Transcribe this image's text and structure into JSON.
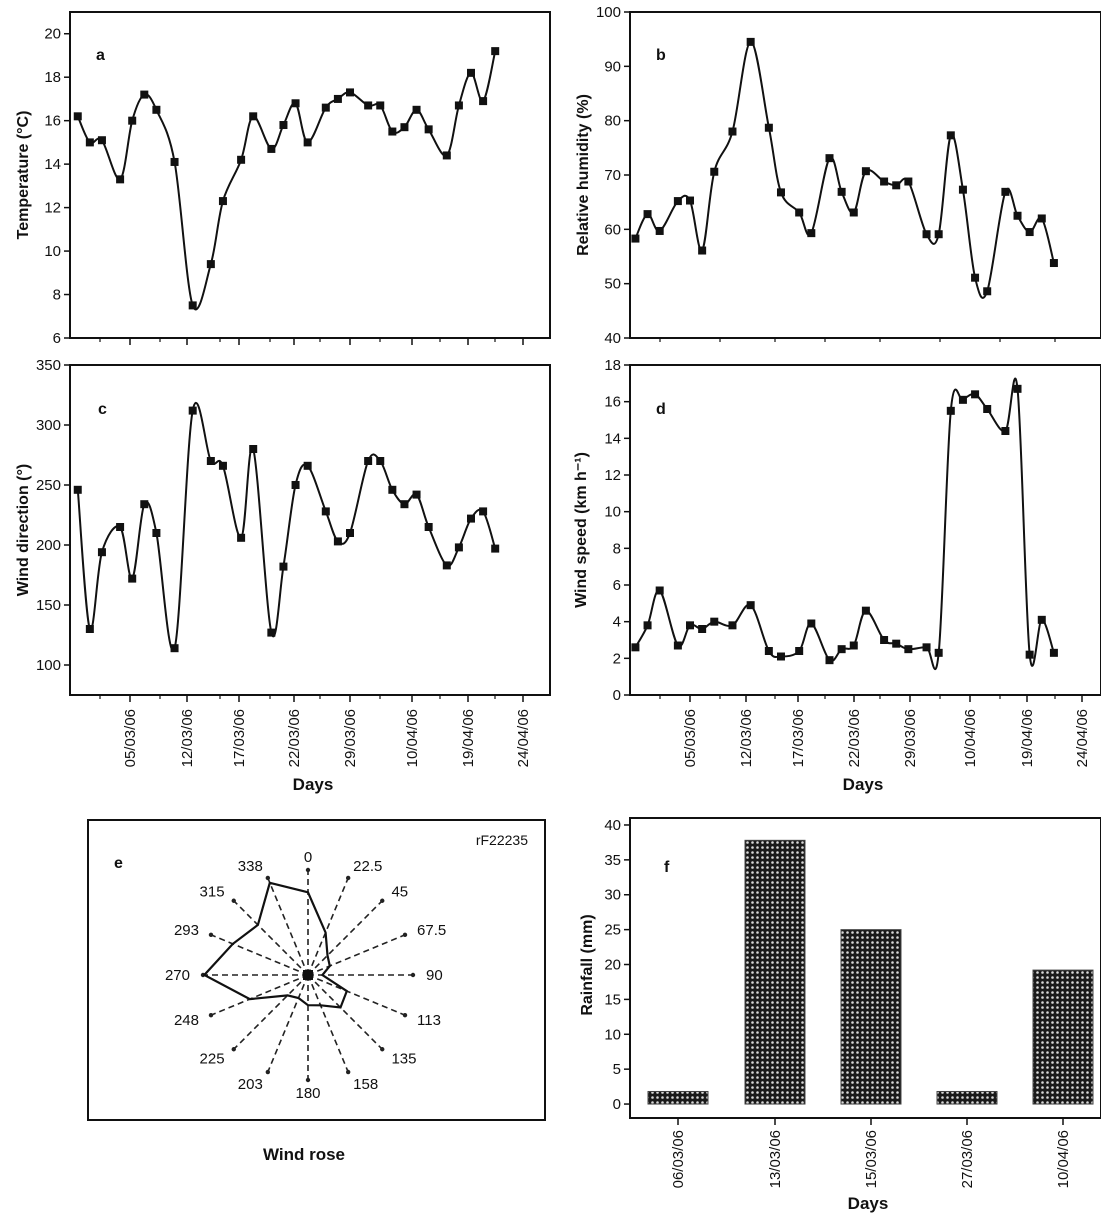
{
  "chart_data": [
    {
      "id": "a",
      "type": "line",
      "panel_label": "a",
      "ylabel": "Temperature (°C)",
      "xlabel": "",
      "ylim": [
        6,
        21
      ],
      "yticks": [
        6,
        8,
        10,
        12,
        14,
        16,
        18,
        20
      ],
      "xlim": [
        0,
        54
      ],
      "xtick_labels": [
        "05/03/06",
        "12/03/06",
        "17/03/06",
        "22/03/06",
        "29/03/06",
        "10/04/06",
        "19/04/06",
        "24/04/06"
      ],
      "xtick_pos": [
        6,
        13,
        18,
        23,
        30,
        42,
        51,
        56
      ],
      "series": [
        {
          "values": [
            [
              2.5,
              16.2
            ],
            [
              3.5,
              15.0
            ],
            [
              4.5,
              15.1
            ],
            [
              6,
              13.3
            ],
            [
              7,
              16.0
            ],
            [
              8,
              17.2
            ],
            [
              9,
              16.5
            ],
            [
              10.5,
              14.1
            ],
            [
              12,
              7.5
            ],
            [
              13.5,
              9.4
            ],
            [
              14.5,
              12.3
            ],
            [
              16,
              14.2
            ],
            [
              17,
              16.2
            ],
            [
              18.5,
              14.7
            ],
            [
              19.5,
              15.8
            ],
            [
              20.5,
              16.8
            ],
            [
              21.5,
              15.0
            ],
            [
              23,
              16.6
            ],
            [
              24,
              17.0
            ],
            [
              25,
              17.3
            ],
            [
              26.5,
              16.7
            ],
            [
              27.5,
              16.7
            ],
            [
              28.5,
              15.5
            ],
            [
              29.5,
              15.7
            ],
            [
              30.5,
              16.5
            ],
            [
              31.5,
              15.6
            ],
            [
              33,
              14.4
            ],
            [
              34,
              16.7
            ],
            [
              35,
              18.2
            ],
            [
              36,
              16.9
            ],
            [
              37,
              19.2
            ]
          ]
        }
      ]
    },
    {
      "id": "b",
      "type": "line",
      "panel_label": "b",
      "ylabel": "Relative humidity (%)",
      "xlabel": "",
      "ylim": [
        40,
        100
      ],
      "yticks": [
        40,
        50,
        60,
        70,
        80,
        90,
        100
      ],
      "xlim": [
        0,
        54
      ],
      "xtick_labels": [],
      "xtick_pos": [],
      "series": [
        {
          "values": [
            [
              2.5,
              58.3
            ],
            [
              3.5,
              62.8
            ],
            [
              4.5,
              59.7
            ],
            [
              6,
              65.2
            ],
            [
              7,
              65.3
            ],
            [
              8,
              56.1
            ],
            [
              9,
              70.6
            ],
            [
              10.5,
              78.0
            ],
            [
              12,
              94.5
            ],
            [
              13.5,
              78.7
            ],
            [
              14.5,
              66.8
            ],
            [
              16,
              63.1
            ],
            [
              17,
              59.3
            ],
            [
              18.5,
              73.1
            ],
            [
              19.5,
              66.9
            ],
            [
              20.5,
              63.1
            ],
            [
              21.5,
              70.7
            ],
            [
              23,
              68.8
            ],
            [
              24,
              68.1
            ],
            [
              25,
              68.8
            ],
            [
              26.5,
              59.1
            ],
            [
              27.5,
              59.1
            ],
            [
              28.5,
              77.3
            ],
            [
              29.5,
              67.3
            ],
            [
              30.5,
              51.1
            ],
            [
              31.5,
              48.6
            ],
            [
              33,
              66.9
            ],
            [
              34,
              62.5
            ],
            [
              35,
              59.5
            ],
            [
              36,
              62.0
            ],
            [
              37,
              53.8
            ]
          ]
        }
      ]
    },
    {
      "id": "c",
      "type": "line",
      "panel_label": "c",
      "ylabel": "Wind direction (°)",
      "xlabel": "Days",
      "ylim": [
        75,
        350
      ],
      "yticks": [
        100,
        150,
        200,
        250,
        300,
        350
      ],
      "xlim": [
        0,
        54
      ],
      "xtick_labels": [
        "05/03/06",
        "12/03/06",
        "17/03/06",
        "22/03/06",
        "29/03/06",
        "10/04/06",
        "19/04/06",
        "24/04/06"
      ],
      "series": [
        {
          "values": [
            [
              2.5,
              246
            ],
            [
              3.5,
              130
            ],
            [
              4.5,
              194
            ],
            [
              6,
              215
            ],
            [
              7,
              172
            ],
            [
              8,
              234
            ],
            [
              9,
              210
            ],
            [
              10.5,
              114
            ],
            [
              12,
              312
            ],
            [
              13.5,
              270
            ],
            [
              14.5,
              266
            ],
            [
              16,
              206
            ],
            [
              17,
              280
            ],
            [
              18.5,
              127
            ],
            [
              19.5,
              182
            ],
            [
              20.5,
              250
            ],
            [
              21.5,
              266
            ],
            [
              23,
              228
            ],
            [
              24,
              203
            ],
            [
              25,
              210
            ],
            [
              26.5,
              270
            ],
            [
              27.5,
              270
            ],
            [
              28.5,
              246
            ],
            [
              29.5,
              234
            ],
            [
              30.5,
              242
            ],
            [
              31.5,
              215
            ],
            [
              33,
              183
            ],
            [
              34,
              198
            ],
            [
              35,
              222
            ],
            [
              36,
              228
            ],
            [
              37,
              197
            ]
          ]
        }
      ]
    },
    {
      "id": "d",
      "type": "line",
      "panel_label": "d",
      "ylabel": "Wind speed (km h⁻¹)",
      "xlabel": "Days",
      "ylim": [
        0,
        18
      ],
      "yticks": [
        0,
        2,
        4,
        6,
        8,
        10,
        12,
        14,
        16,
        18
      ],
      "xlim": [
        0,
        54
      ],
      "xtick_labels": [
        "05/03/06",
        "12/03/06",
        "17/03/06",
        "22/03/06",
        "29/03/06",
        "10/04/06",
        "19/04/06",
        "24/04/06"
      ],
      "series": [
        {
          "values": [
            [
              2.5,
              2.6
            ],
            [
              3.5,
              3.8
            ],
            [
              4.5,
              5.7
            ],
            [
              6,
              2.7
            ],
            [
              7,
              3.8
            ],
            [
              8,
              3.6
            ],
            [
              9,
              4.0
            ],
            [
              10.5,
              3.8
            ],
            [
              12,
              4.9
            ],
            [
              13.5,
              2.4
            ],
            [
              14.5,
              2.1
            ],
            [
              16,
              2.4
            ],
            [
              17,
              3.9
            ],
            [
              18.5,
              1.9
            ],
            [
              19.5,
              2.5
            ],
            [
              20.5,
              2.7
            ],
            [
              21.5,
              4.6
            ],
            [
              23,
              3.0
            ],
            [
              24,
              2.8
            ],
            [
              25,
              2.5
            ],
            [
              26.5,
              2.6
            ],
            [
              27.5,
              2.3
            ],
            [
              28.5,
              15.5
            ],
            [
              29.5,
              16.1
            ],
            [
              30.5,
              16.4
            ],
            [
              31.5,
              15.6
            ],
            [
              33,
              14.4
            ],
            [
              34,
              16.7
            ],
            [
              35,
              2.2
            ],
            [
              36,
              4.1
            ],
            [
              37,
              2.3
            ]
          ]
        }
      ]
    },
    {
      "id": "e",
      "type": "radar",
      "panel_label": "e",
      "title": "rF22235",
      "xlabel": "Wind rose",
      "directions": [
        "0",
        "22.5",
        "45",
        "67.5",
        "90",
        "113",
        "135",
        "158",
        "180",
        "203",
        "225",
        "248",
        "270",
        "293",
        "315",
        "338"
      ],
      "values": [
        6.3,
        3.5,
        2.1,
        1.8,
        1.1,
        3.2,
        3.5,
        2.5,
        2.3,
        1.9,
        2.2,
        4.8,
        7.9,
        6.2,
        5.4,
        7.6
      ]
    },
    {
      "id": "f",
      "type": "bar",
      "panel_label": "f",
      "ylabel": "Rainfall (mm)",
      "xlabel": "Days",
      "ylim": [
        -2,
        41
      ],
      "yticks": [
        0,
        5,
        10,
        15,
        20,
        25,
        30,
        35,
        40
      ],
      "categories": [
        "06/03/06",
        "13/03/06",
        "15/03/06",
        "27/03/06",
        "10/04/06"
      ],
      "values": [
        1.8,
        37.8,
        25.0,
        1.8,
        19.2
      ]
    }
  ]
}
